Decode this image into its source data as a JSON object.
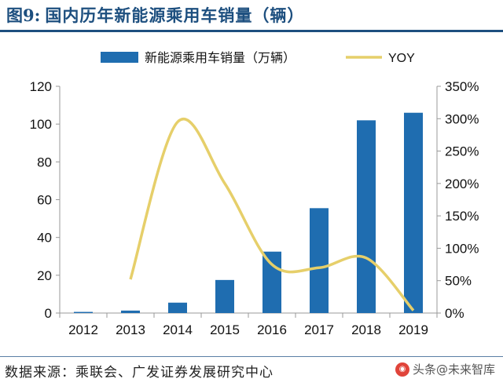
{
  "header": {
    "figure_label": "图9:",
    "title": "国内历年新能源乘用车销量（辆）"
  },
  "footer": {
    "source": "数据来源：乘联会、广发证券发展研究中心",
    "watermark": "头条@未来智库"
  },
  "colors": {
    "bar": "#1f6db0",
    "line": "#e6cf6a",
    "title": "#1d4f7f"
  },
  "chart_data": {
    "type": "bar",
    "categories": [
      "2012",
      "2013",
      "2014",
      "2015",
      "2016",
      "2017",
      "2018",
      "2019"
    ],
    "series": [
      {
        "name": "新能源乘用车销量（万辆）",
        "type": "bar",
        "axis": "left",
        "values": [
          0.6,
          1.3,
          5.5,
          17.5,
          32.5,
          55.5,
          102,
          106
        ]
      },
      {
        "name": "YOY",
        "type": "line",
        "axis": "right",
        "values": [
          null,
          0.52,
          2.95,
          2.0,
          0.75,
          0.7,
          0.85,
          0.04
        ]
      }
    ],
    "y_left": {
      "min": 0,
      "max": 120,
      "ticks": [
        "0",
        "20",
        "40",
        "60",
        "80",
        "100",
        "120"
      ]
    },
    "y_right": {
      "min": 0,
      "max": 3.5,
      "ticks": [
        "0%",
        "50%",
        "100%",
        "150%",
        "200%",
        "250%",
        "300%",
        "350%"
      ]
    },
    "legend": {
      "position": "top"
    },
    "grid": false
  }
}
